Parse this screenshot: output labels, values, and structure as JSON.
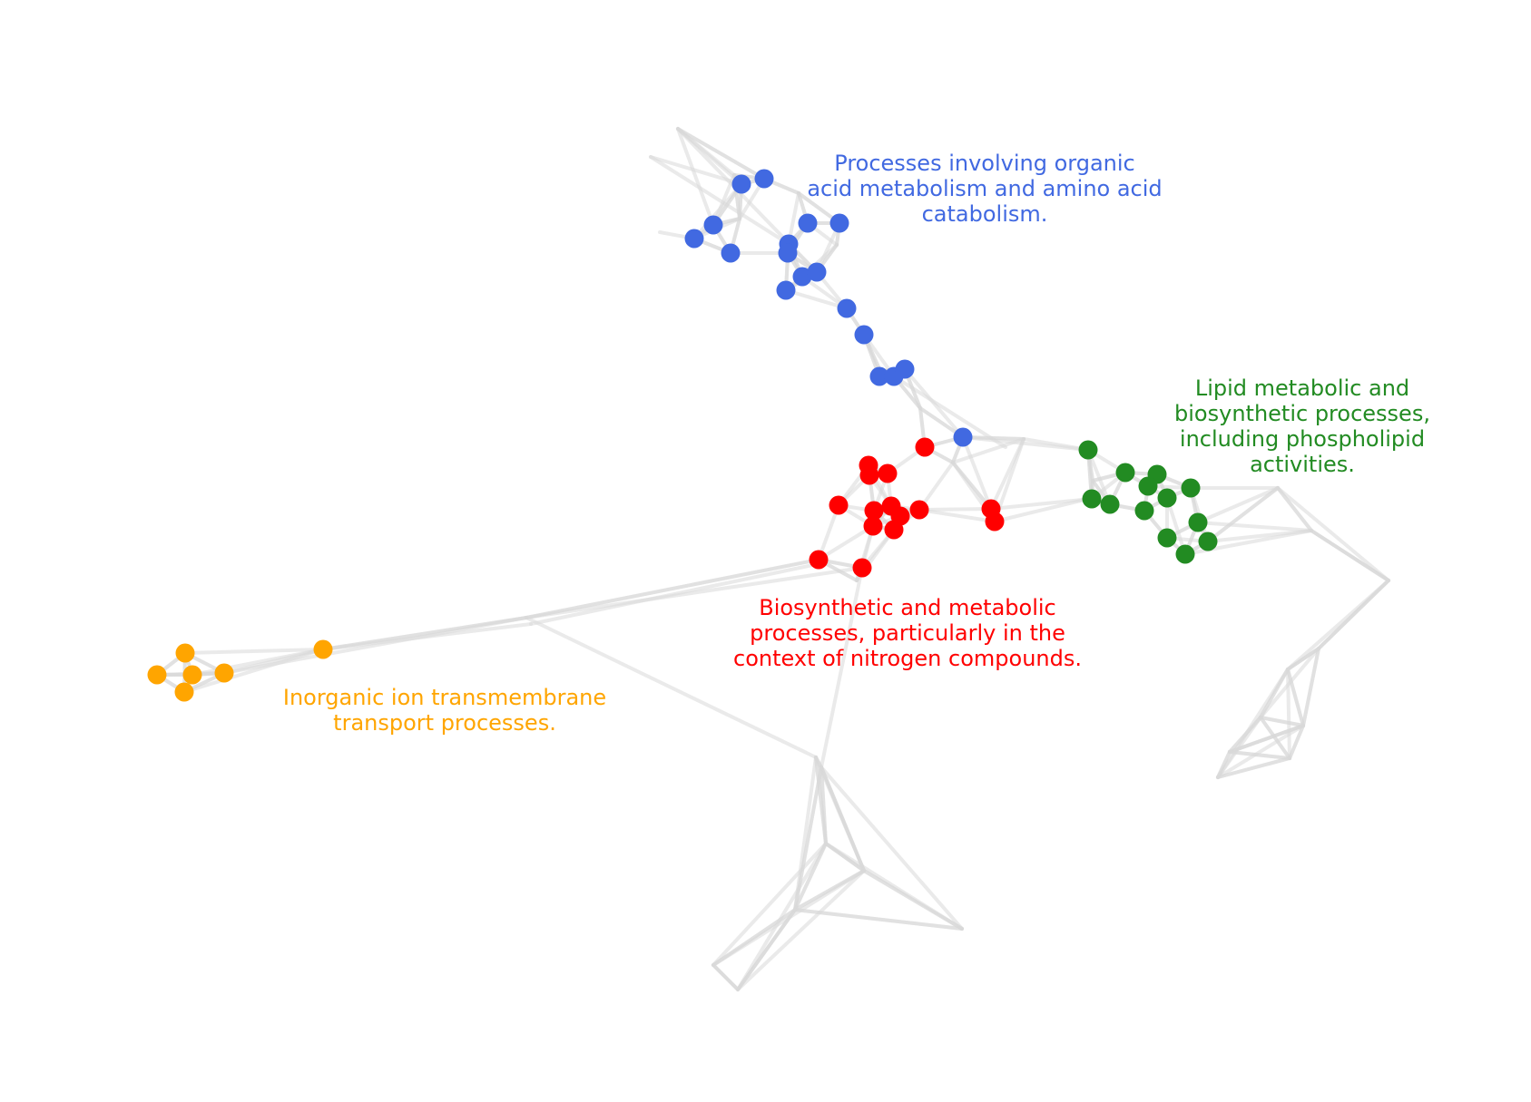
{
  "clusters": {
    "blue": {
      "color": "#4169E1",
      "lines": [
        "Processes involving organic",
        "acid metabolism and amino acid",
        "catabolism."
      ]
    },
    "green": {
      "color": "#228B22",
      "lines": [
        "Lipid metabolic and",
        "biosynthetic processes,",
        "including phospholipid",
        "activities."
      ]
    },
    "red": {
      "color": "#FF0000",
      "lines": [
        "Biosynthetic and metabolic",
        "processes, particularly in the",
        "context of nitrogen compounds."
      ]
    },
    "orange": {
      "color": "#FFA500",
      "lines": [
        "Inorganic ion transmembrane",
        "transport processes."
      ]
    }
  },
  "edge_color": "#d9d9d9"
}
